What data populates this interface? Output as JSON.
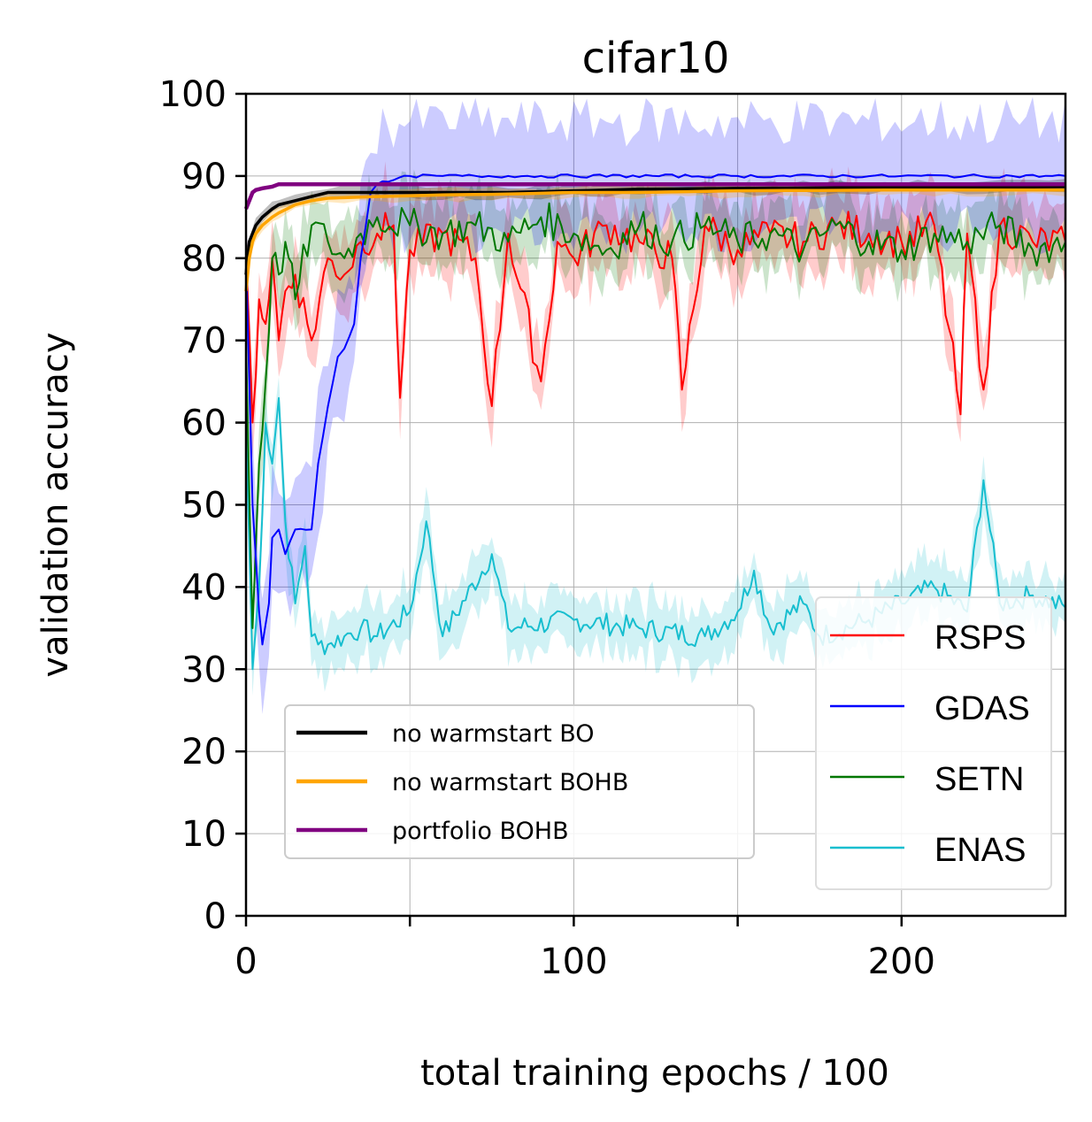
{
  "chart_data": {
    "type": "line",
    "title": "cifar10",
    "xlabel": "total training epochs / 100",
    "ylabel": "validation accuracy",
    "xlim": [
      0,
      250
    ],
    "ylim": [
      0,
      100
    ],
    "xticks": [
      0,
      50,
      100,
      150,
      200
    ],
    "xtick_labels": [
      "0",
      "",
      "100",
      "",
      "200"
    ],
    "yticks": [
      0,
      10,
      20,
      30,
      40,
      50,
      60,
      70,
      80,
      90,
      100
    ],
    "ytick_labels": [
      "0",
      "10",
      "20",
      "30",
      "40",
      "50",
      "60",
      "70",
      "80",
      "90",
      "100"
    ],
    "grid": true,
    "series": [
      {
        "name": "RSPS",
        "color": "#ff0000",
        "legend": "right",
        "x": [
          0,
          2,
          4,
          6,
          8,
          10,
          12,
          15,
          20,
          25,
          30,
          35,
          40,
          45,
          47,
          50,
          60,
          70,
          75,
          80,
          90,
          95,
          100,
          110,
          120,
          130,
          133,
          140,
          150,
          160,
          170,
          180,
          190,
          200,
          210,
          218,
          220,
          225,
          230,
          240,
          250
        ],
        "y": [
          80,
          60,
          75,
          72,
          80,
          70,
          76,
          78,
          70,
          80,
          78,
          82,
          83,
          84,
          63,
          81,
          83,
          80,
          62,
          83,
          65,
          82,
          80,
          84,
          82,
          80,
          64,
          84,
          81,
          83,
          82,
          84,
          83,
          82,
          84,
          61,
          83,
          64,
          84,
          82,
          82
        ]
      },
      {
        "name": "GDAS",
        "color": "#0000ff",
        "legend": "right",
        "x": [
          0,
          2,
          4,
          5,
          7,
          8,
          10,
          12,
          15,
          20,
          22,
          25,
          28,
          30,
          33,
          35,
          38,
          40,
          45,
          50,
          60,
          80,
          100,
          150,
          200,
          250
        ],
        "y": [
          80,
          50,
          37,
          33,
          38,
          46,
          47,
          44,
          47,
          47,
          55,
          62,
          68,
          69,
          72,
          80,
          88,
          89,
          89.5,
          90,
          90,
          90,
          90,
          90,
          90,
          90
        ]
      },
      {
        "name": "SETN",
        "color": "#007700",
        "legend": "right",
        "x": [
          0,
          2,
          4,
          6,
          8,
          10,
          12,
          15,
          20,
          25,
          30,
          35,
          40,
          50,
          60,
          70,
          80,
          90,
          100,
          110,
          120,
          130,
          140,
          150,
          160,
          170,
          180,
          190,
          200,
          210,
          220,
          230,
          240,
          250
        ],
        "y": [
          70,
          35,
          55,
          65,
          80,
          78,
          82,
          75,
          84,
          82,
          80,
          83,
          85,
          84,
          83,
          84,
          82,
          85,
          83,
          81,
          84,
          82,
          84,
          82,
          83,
          81,
          84,
          82,
          81,
          83,
          82,
          84,
          81,
          82
        ]
      },
      {
        "name": "ENAS",
        "color": "#17becf",
        "legend": "right",
        "x": [
          0,
          2,
          4,
          6,
          8,
          10,
          12,
          15,
          18,
          20,
          22,
          25,
          30,
          35,
          40,
          50,
          55,
          60,
          75,
          80,
          100,
          120,
          140,
          150,
          155,
          160,
          170,
          175,
          190,
          200,
          210,
          220,
          225,
          230,
          240,
          250
        ],
        "y": [
          60,
          30,
          40,
          60,
          55,
          63,
          48,
          38,
          45,
          34,
          33,
          33,
          34,
          35,
          34,
          37,
          48,
          34,
          44,
          35,
          36,
          35,
          34,
          37,
          42,
          35,
          38,
          34,
          36,
          38,
          40,
          37,
          53,
          38,
          39,
          37.5
        ]
      },
      {
        "name": "no warmstart BO",
        "color": "#000000",
        "legend": "left",
        "x": [
          0,
          1,
          2,
          3,
          5,
          8,
          10,
          15,
          20,
          25,
          40,
          60,
          80,
          100,
          120,
          150,
          200,
          250
        ],
        "y": [
          78,
          82,
          83,
          84,
          85,
          86,
          86.5,
          87,
          87.5,
          88,
          88,
          88,
          88,
          88.2,
          88.4,
          88.5,
          88.6,
          88.7
        ]
      },
      {
        "name": "no warmstart BOHB",
        "color": "#ffa500",
        "legend": "left",
        "x": [
          0,
          1,
          2,
          3,
          5,
          8,
          10,
          15,
          20,
          25,
          40,
          60,
          80,
          100,
          120,
          150,
          200,
          250
        ],
        "y": [
          76,
          80,
          82,
          83,
          84,
          85,
          85.5,
          86.5,
          87,
          87.3,
          87.5,
          87.7,
          87.8,
          88,
          88,
          88.2,
          88.3,
          88.3
        ]
      },
      {
        "name": "portfolio BOHB",
        "color": "#800080",
        "legend": "left",
        "x": [
          0,
          1,
          2,
          3,
          5,
          8,
          10,
          15,
          20,
          40,
          60,
          100,
          150,
          200,
          250
        ],
        "y": [
          86,
          87,
          88,
          88.3,
          88.5,
          88.7,
          89,
          89,
          89,
          89,
          89,
          89,
          89,
          89,
          89
        ]
      }
    ]
  }
}
